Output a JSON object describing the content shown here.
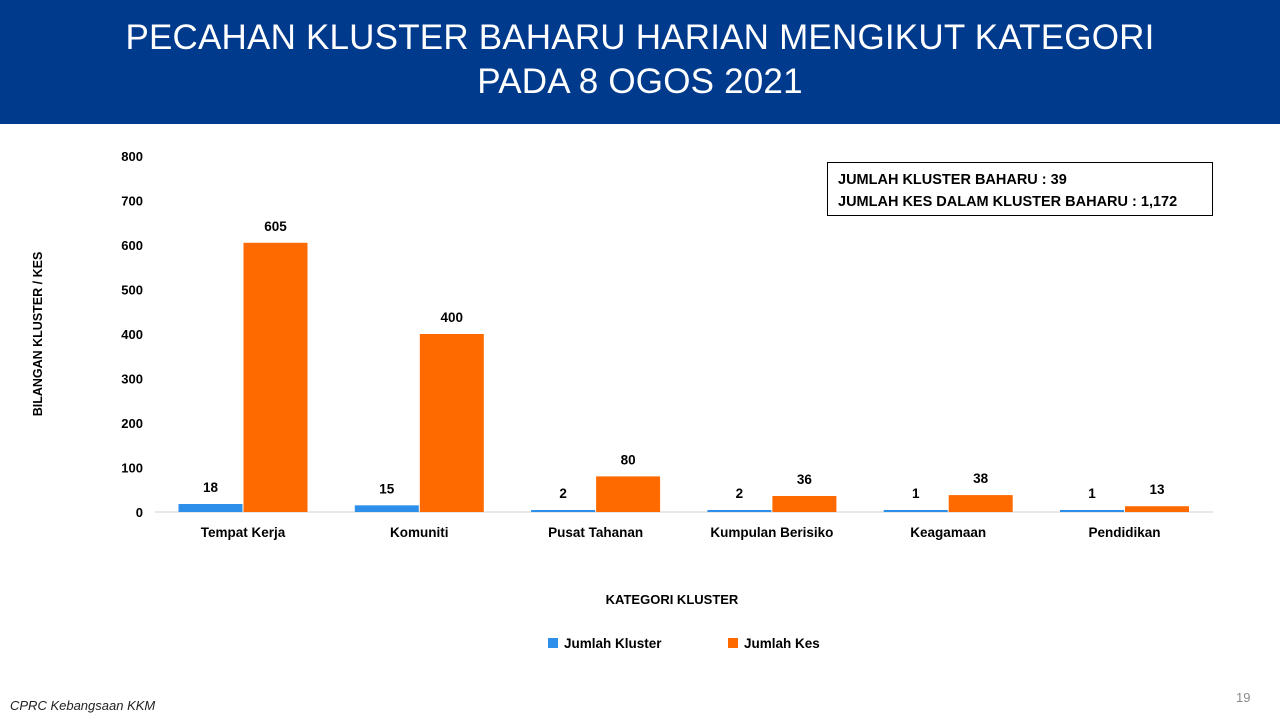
{
  "header": {
    "title_line1": "PECAHAN KLUSTER BAHARU HARIAN MENGIKUT KATEGORI",
    "title_line2": "PADA 8 OGOS 2021"
  },
  "summary": {
    "line1": "JUMLAH KLUSTER BAHARU : 39",
    "line2": "JUMLAH KES DALAM KLUSTER BAHARU : 1,172"
  },
  "chart_data": {
    "type": "bar",
    "categories": [
      "Tempat Kerja",
      "Komuniti",
      "Pusat Tahanan",
      "Kumpulan Berisiko",
      "Keagamaan",
      "Pendidikan"
    ],
    "series": [
      {
        "name": "Jumlah Kluster",
        "color": "#2e8fea",
        "values": [
          18,
          15,
          2,
          2,
          1,
          1
        ]
      },
      {
        "name": "Jumlah Kes",
        "color": "#ff6a00",
        "values": [
          605,
          400,
          80,
          36,
          38,
          13
        ]
      }
    ],
    "xlabel": "KATEGORI KLUSTER",
    "ylabel": "BILANGAN KLUSTER / KES",
    "ylim": [
      0,
      800
    ],
    "yticks": [
      0,
      100,
      200,
      300,
      400,
      500,
      600,
      700,
      800
    ],
    "grid": false,
    "legend": "bottom"
  },
  "footer": {
    "source": "CPRC Kebangsaan KKM",
    "page_number": "19"
  }
}
